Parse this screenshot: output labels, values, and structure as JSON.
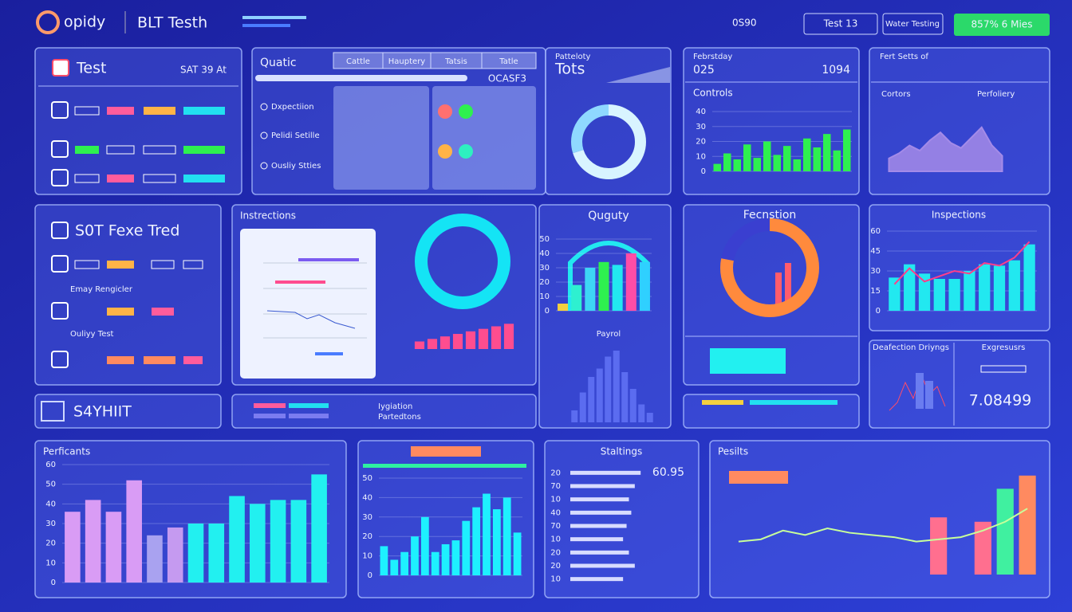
{
  "header": {
    "logo": "opidy",
    "title": "BLT Testh",
    "status": "0S90",
    "buttons": [
      "Test 13",
      "Water Testing",
      "857% 6 Mies"
    ]
  },
  "test_panel": {
    "title": "Test",
    "meta": "SAT 39 At"
  },
  "quality_panel": {
    "title": "Quatic",
    "tabs": [
      "Cattle",
      "Hauptery",
      "Tatsis",
      "Tatle"
    ],
    "code": "OCASF3",
    "items": [
      "Dxpectiion",
      "Pelidi Setille",
      "Ousliy Stties"
    ]
  },
  "totals_panel": {
    "label": "Patteloty",
    "title": "Tots"
  },
  "controls_panel": {
    "label": "Febrstday",
    "value": "025",
    "extra": "1094"
  },
  "area_panel": {
    "label": "Fert Setts of",
    "left": "Cortors",
    "right": "Perfoliery"
  },
  "soft_panel": {
    "title": "S0T Fexe Tred",
    "rows": [
      "Emay Rengicler",
      "Ouliyy Test"
    ]
  },
  "banner": {
    "title": "S4YHIIT",
    "items": [
      "Iygiation",
      "Partedtons"
    ]
  },
  "deflection_panel": {
    "title": "Deafection Driyngs",
    "right_title": "Exgresusrs",
    "value": "7.08499"
  },
  "charts": [
    {
      "type": "bar",
      "title": "Controls",
      "values": [
        5,
        12,
        8,
        18,
        9,
        20,
        11,
        17,
        8,
        22,
        16,
        25,
        14,
        28
      ],
      "ylim": [
        0,
        40
      ],
      "yticks": [
        0,
        10,
        20,
        30,
        40
      ],
      "color": "#2ef04f"
    },
    {
      "type": "area",
      "values": [
        10,
        14,
        20,
        16,
        24,
        30,
        22,
        18,
        26,
        34,
        20,
        12
      ],
      "ylim": [
        0,
        40
      ],
      "color": "#a48be8"
    },
    {
      "type": "bar-line",
      "title": "Inspections",
      "values": [
        25,
        35,
        28,
        24,
        24,
        30,
        35,
        34,
        38,
        50
      ],
      "line_values": [
        20,
        32,
        22,
        26,
        30,
        28,
        36,
        34,
        40,
        52
      ],
      "ylim": [
        0,
        60
      ],
      "yticks": [
        0,
        15,
        30,
        45,
        60
      ],
      "color": "#22e8f0",
      "line_color": "#ff3e8a"
    },
    {
      "type": "bar",
      "title": "Quguty",
      "values": [
        5,
        18,
        30,
        34,
        32,
        40,
        34
      ],
      "ylim": [
        0,
        50
      ],
      "yticks": [
        0,
        10,
        20,
        30,
        40,
        50
      ],
      "colors": [
        "#f4d03f",
        "#2ef0d0",
        "#3dd6f5",
        "#2ef04f",
        "#22e8f0",
        "#ff4da6",
        "#2fd0ff"
      ]
    },
    {
      "type": "donut",
      "title": "Fecnstion",
      "values": [
        78,
        22
      ],
      "colors": [
        "#ff8a3d",
        "#3a3fd0"
      ]
    },
    {
      "type": "donut",
      "values": [
        70,
        30
      ],
      "colors": [
        "#d8f4ff",
        "#8fd8ff"
      ]
    },
    {
      "type": "donut",
      "title": "Instrections",
      "values": [
        100
      ],
      "colors": [
        "#14e4f5"
      ]
    },
    {
      "type": "bar",
      "values": [
        3,
        4,
        5,
        6,
        7,
        8,
        9,
        10
      ],
      "ylim": [
        0,
        12
      ],
      "color": "#ff4d8f"
    },
    {
      "type": "bar",
      "title": "Payrol",
      "values": [
        10,
        25,
        38,
        45,
        55,
        60,
        42,
        28,
        15,
        8
      ],
      "ylim": [
        0,
        70
      ],
      "color": "#5b6cf0"
    },
    {
      "type": "bar",
      "title": "Perficants",
      "values": [
        36,
        42,
        36,
        52,
        24,
        28,
        30,
        30,
        44,
        40,
        42,
        42,
        55
      ],
      "ylim": [
        0,
        60
      ],
      "yticks": [
        0,
        10,
        20,
        30,
        40,
        50,
        60
      ],
      "colors": [
        "#d99cf5",
        "#d99cf5",
        "#d99cf5",
        "#d99cf5",
        "#a9a2f0",
        "#c59af0",
        "#22f0f0",
        "#22f0f0",
        "#22f0f0",
        "#22f0f0",
        "#22f0f0",
        "#22f0f0",
        "#22f0f0"
      ]
    },
    {
      "type": "bar",
      "values": [
        15,
        8,
        12,
        20,
        30,
        12,
        16,
        18,
        28,
        35,
        42,
        34,
        40,
        22
      ],
      "ylim": [
        0,
        50
      ],
      "yticks": [
        0,
        10,
        20,
        30,
        40,
        50
      ],
      "color": "#1ef0ff"
    },
    {
      "type": "hbar",
      "title": "Staltings",
      "subtitle": "60.95",
      "categories": [
        "20",
        "70",
        "10",
        "40",
        "70",
        "10",
        "20",
        "20",
        "10"
      ],
      "values": [
        60,
        55,
        50,
        52,
        48,
        45,
        50,
        55,
        45
      ],
      "xlim": [
        0,
        100
      ],
      "color": "#d8dcff"
    },
    {
      "type": "line-bar",
      "title": "Pesilts",
      "line_values": [
        30,
        32,
        40,
        36,
        42,
        38,
        36,
        34,
        30,
        32,
        34,
        40,
        48,
        60
      ],
      "bar_values": [
        null,
        null,
        null,
        null,
        null,
        null,
        null,
        null,
        null,
        52,
        null,
        48,
        78,
        90
      ],
      "bar_colors": [
        "#ff7a9a",
        "#ff7a9a",
        "#ff7a9a",
        "#ff7a9a",
        "#ff7a9a",
        "#ff7a9a",
        "#ff7a9a",
        "#ff7a9a",
        "#ff7a9a",
        "#ff6f8f",
        "#ff6f8f",
        "#ff6f8f",
        "#40f0a0",
        "#ff8a60"
      ],
      "ylim": [
        0,
        100
      ],
      "color": "#c8ff9a"
    }
  ]
}
